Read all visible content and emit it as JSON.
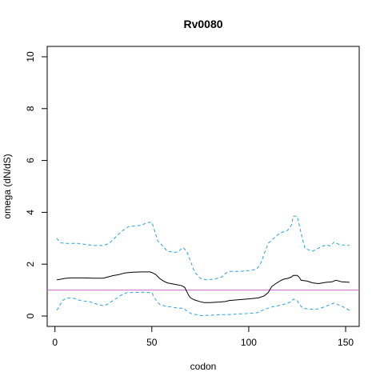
{
  "chart_data": {
    "type": "line",
    "title": "Rv0080",
    "xlabel": "codon",
    "ylabel": "omega (dN/dS)",
    "xlim": [
      -4,
      157
    ],
    "ylim": [
      -0.4,
      10.4
    ],
    "x_ticks": [
      0,
      50,
      100,
      150
    ],
    "y_ticks": [
      0,
      2,
      4,
      6,
      8,
      10
    ],
    "grid": false,
    "reference_line": {
      "y": 1,
      "color": "#cc66cc"
    },
    "series": [
      {
        "style": "solid",
        "color": "#000000",
        "points": [
          [
            1,
            1.4
          ],
          [
            3,
            1.42
          ],
          [
            5,
            1.45
          ],
          [
            8,
            1.47
          ],
          [
            15,
            1.47
          ],
          [
            20,
            1.46
          ],
          [
            25,
            1.46
          ],
          [
            27,
            1.5
          ],
          [
            30,
            1.56
          ],
          [
            33,
            1.6
          ],
          [
            36,
            1.66
          ],
          [
            40,
            1.69
          ],
          [
            45,
            1.7
          ],
          [
            49,
            1.7
          ],
          [
            50,
            1.68
          ],
          [
            52,
            1.6
          ],
          [
            54,
            1.45
          ],
          [
            56,
            1.35
          ],
          [
            58,
            1.28
          ],
          [
            62,
            1.22
          ],
          [
            65,
            1.18
          ],
          [
            66,
            1.15
          ],
          [
            67,
            1.1
          ],
          [
            68,
            0.95
          ],
          [
            69,
            0.8
          ],
          [
            70,
            0.7
          ],
          [
            72,
            0.62
          ],
          [
            75,
            0.55
          ],
          [
            77,
            0.52
          ],
          [
            80,
            0.52
          ],
          [
            85,
            0.54
          ],
          [
            88,
            0.56
          ],
          [
            90,
            0.6
          ],
          [
            95,
            0.63
          ],
          [
            100,
            0.66
          ],
          [
            105,
            0.7
          ],
          [
            108,
            0.78
          ],
          [
            110,
            0.9
          ],
          [
            112,
            1.15
          ],
          [
            114,
            1.25
          ],
          [
            116,
            1.35
          ],
          [
            118,
            1.42
          ],
          [
            120,
            1.45
          ],
          [
            122,
            1.5
          ],
          [
            123,
            1.57
          ],
          [
            125,
            1.57
          ],
          [
            126,
            1.5
          ],
          [
            127,
            1.38
          ],
          [
            130,
            1.35
          ],
          [
            133,
            1.28
          ],
          [
            136,
            1.25
          ],
          [
            140,
            1.3
          ],
          [
            143,
            1.32
          ],
          [
            145,
            1.38
          ],
          [
            148,
            1.32
          ],
          [
            152,
            1.3
          ]
        ]
      },
      {
        "style": "dashed",
        "color": "#29a3e0",
        "points": [
          [
            1,
            3.0
          ],
          [
            2,
            2.9
          ],
          [
            3,
            2.82
          ],
          [
            6,
            2.8
          ],
          [
            12,
            2.8
          ],
          [
            16,
            2.76
          ],
          [
            20,
            2.72
          ],
          [
            25,
            2.72
          ],
          [
            28,
            2.8
          ],
          [
            30,
            2.95
          ],
          [
            32,
            3.1
          ],
          [
            35,
            3.3
          ],
          [
            38,
            3.45
          ],
          [
            42,
            3.48
          ],
          [
            45,
            3.5
          ],
          [
            47,
            3.6
          ],
          [
            50,
            3.62
          ],
          [
            51,
            3.4
          ],
          [
            53,
            2.9
          ],
          [
            55,
            2.75
          ],
          [
            58,
            2.5
          ],
          [
            62,
            2.45
          ],
          [
            64,
            2.5
          ],
          [
            66,
            2.65
          ],
          [
            68,
            2.5
          ],
          [
            70,
            2.1
          ],
          [
            72,
            1.7
          ],
          [
            75,
            1.45
          ],
          [
            78,
            1.4
          ],
          [
            82,
            1.42
          ],
          [
            86,
            1.5
          ],
          [
            88,
            1.65
          ],
          [
            90,
            1.72
          ],
          [
            95,
            1.72
          ],
          [
            100,
            1.75
          ],
          [
            104,
            1.8
          ],
          [
            106,
            2.0
          ],
          [
            108,
            2.4
          ],
          [
            110,
            2.8
          ],
          [
            113,
            3.0
          ],
          [
            116,
            3.2
          ],
          [
            120,
            3.3
          ],
          [
            122,
            3.5
          ],
          [
            123,
            3.85
          ],
          [
            125,
            3.85
          ],
          [
            127,
            3.2
          ],
          [
            129,
            2.6
          ],
          [
            133,
            2.5
          ],
          [
            136,
            2.62
          ],
          [
            140,
            2.75
          ],
          [
            142,
            2.7
          ],
          [
            144,
            2.85
          ],
          [
            147,
            2.75
          ],
          [
            152,
            2.72
          ]
        ]
      },
      {
        "style": "dashed",
        "color": "#29a3e0",
        "points": [
          [
            1,
            0.22
          ],
          [
            2,
            0.35
          ],
          [
            4,
            0.6
          ],
          [
            6,
            0.7
          ],
          [
            10,
            0.68
          ],
          [
            13,
            0.6
          ],
          [
            18,
            0.55
          ],
          [
            22,
            0.45
          ],
          [
            25,
            0.4
          ],
          [
            27,
            0.45
          ],
          [
            29,
            0.55
          ],
          [
            31,
            0.65
          ],
          [
            34,
            0.8
          ],
          [
            37,
            0.9
          ],
          [
            45,
            0.92
          ],
          [
            50,
            0.9
          ],
          [
            52,
            0.62
          ],
          [
            54,
            0.45
          ],
          [
            57,
            0.38
          ],
          [
            60,
            0.35
          ],
          [
            64,
            0.3
          ],
          [
            66,
            0.3
          ],
          [
            67,
            0.26
          ],
          [
            68,
            0.2
          ],
          [
            70,
            0.1
          ],
          [
            75,
            0.02
          ],
          [
            80,
            0.03
          ],
          [
            85,
            0.05
          ],
          [
            90,
            0.06
          ],
          [
            95,
            0.08
          ],
          [
            100,
            0.1
          ],
          [
            104,
            0.12
          ],
          [
            106,
            0.18
          ],
          [
            108,
            0.25
          ],
          [
            110,
            0.3
          ],
          [
            112,
            0.35
          ],
          [
            115,
            0.4
          ],
          [
            118,
            0.45
          ],
          [
            122,
            0.55
          ],
          [
            123,
            0.65
          ],
          [
            125,
            0.6
          ],
          [
            126,
            0.45
          ],
          [
            128,
            0.3
          ],
          [
            130,
            0.28
          ],
          [
            134,
            0.25
          ],
          [
            137,
            0.3
          ],
          [
            140,
            0.38
          ],
          [
            144,
            0.5
          ],
          [
            148,
            0.38
          ],
          [
            152,
            0.22
          ]
        ]
      }
    ]
  }
}
